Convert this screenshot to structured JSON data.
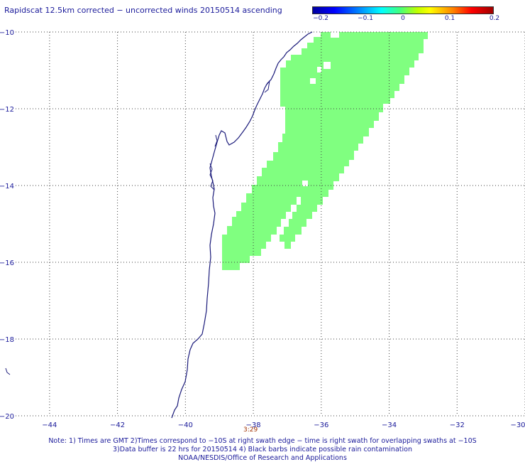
{
  "title": "Rapidscat 12.5km corrected − uncorrected winds 20150514 ascending",
  "colorbar": {
    "labels": [
      "−0.2",
      "−0.1",
      "0",
      "0.1",
      "0.2"
    ]
  },
  "axes": {
    "x_ticks": [
      "−44",
      "−42",
      "−40",
      "−38",
      "−36",
      "−34",
      "−32",
      "−30"
    ],
    "y_ticks": [
      "−10",
      "−12",
      "−14",
      "−16",
      "−18",
      "−20"
    ]
  },
  "map": {
    "lon_range": [
      -45,
      -30
    ],
    "lat_range": [
      -20,
      -10
    ],
    "swath_color": "#80ff80",
    "coast_color": "#1a1a7a",
    "grid_color": "#404040"
  },
  "swath_time": "3:29",
  "footer": {
    "line1": "Note: 1) Times are GMT 2)Times correspond to −10S at right swath edge − time is right swath for overlapping swaths at −10S",
    "line2": "3)Data buffer is 22 hrs for 20150514 4) Black barbs indicate possible rain contamination",
    "line3": "NOAA/NESDIS/Office of Research and Applications"
  }
}
